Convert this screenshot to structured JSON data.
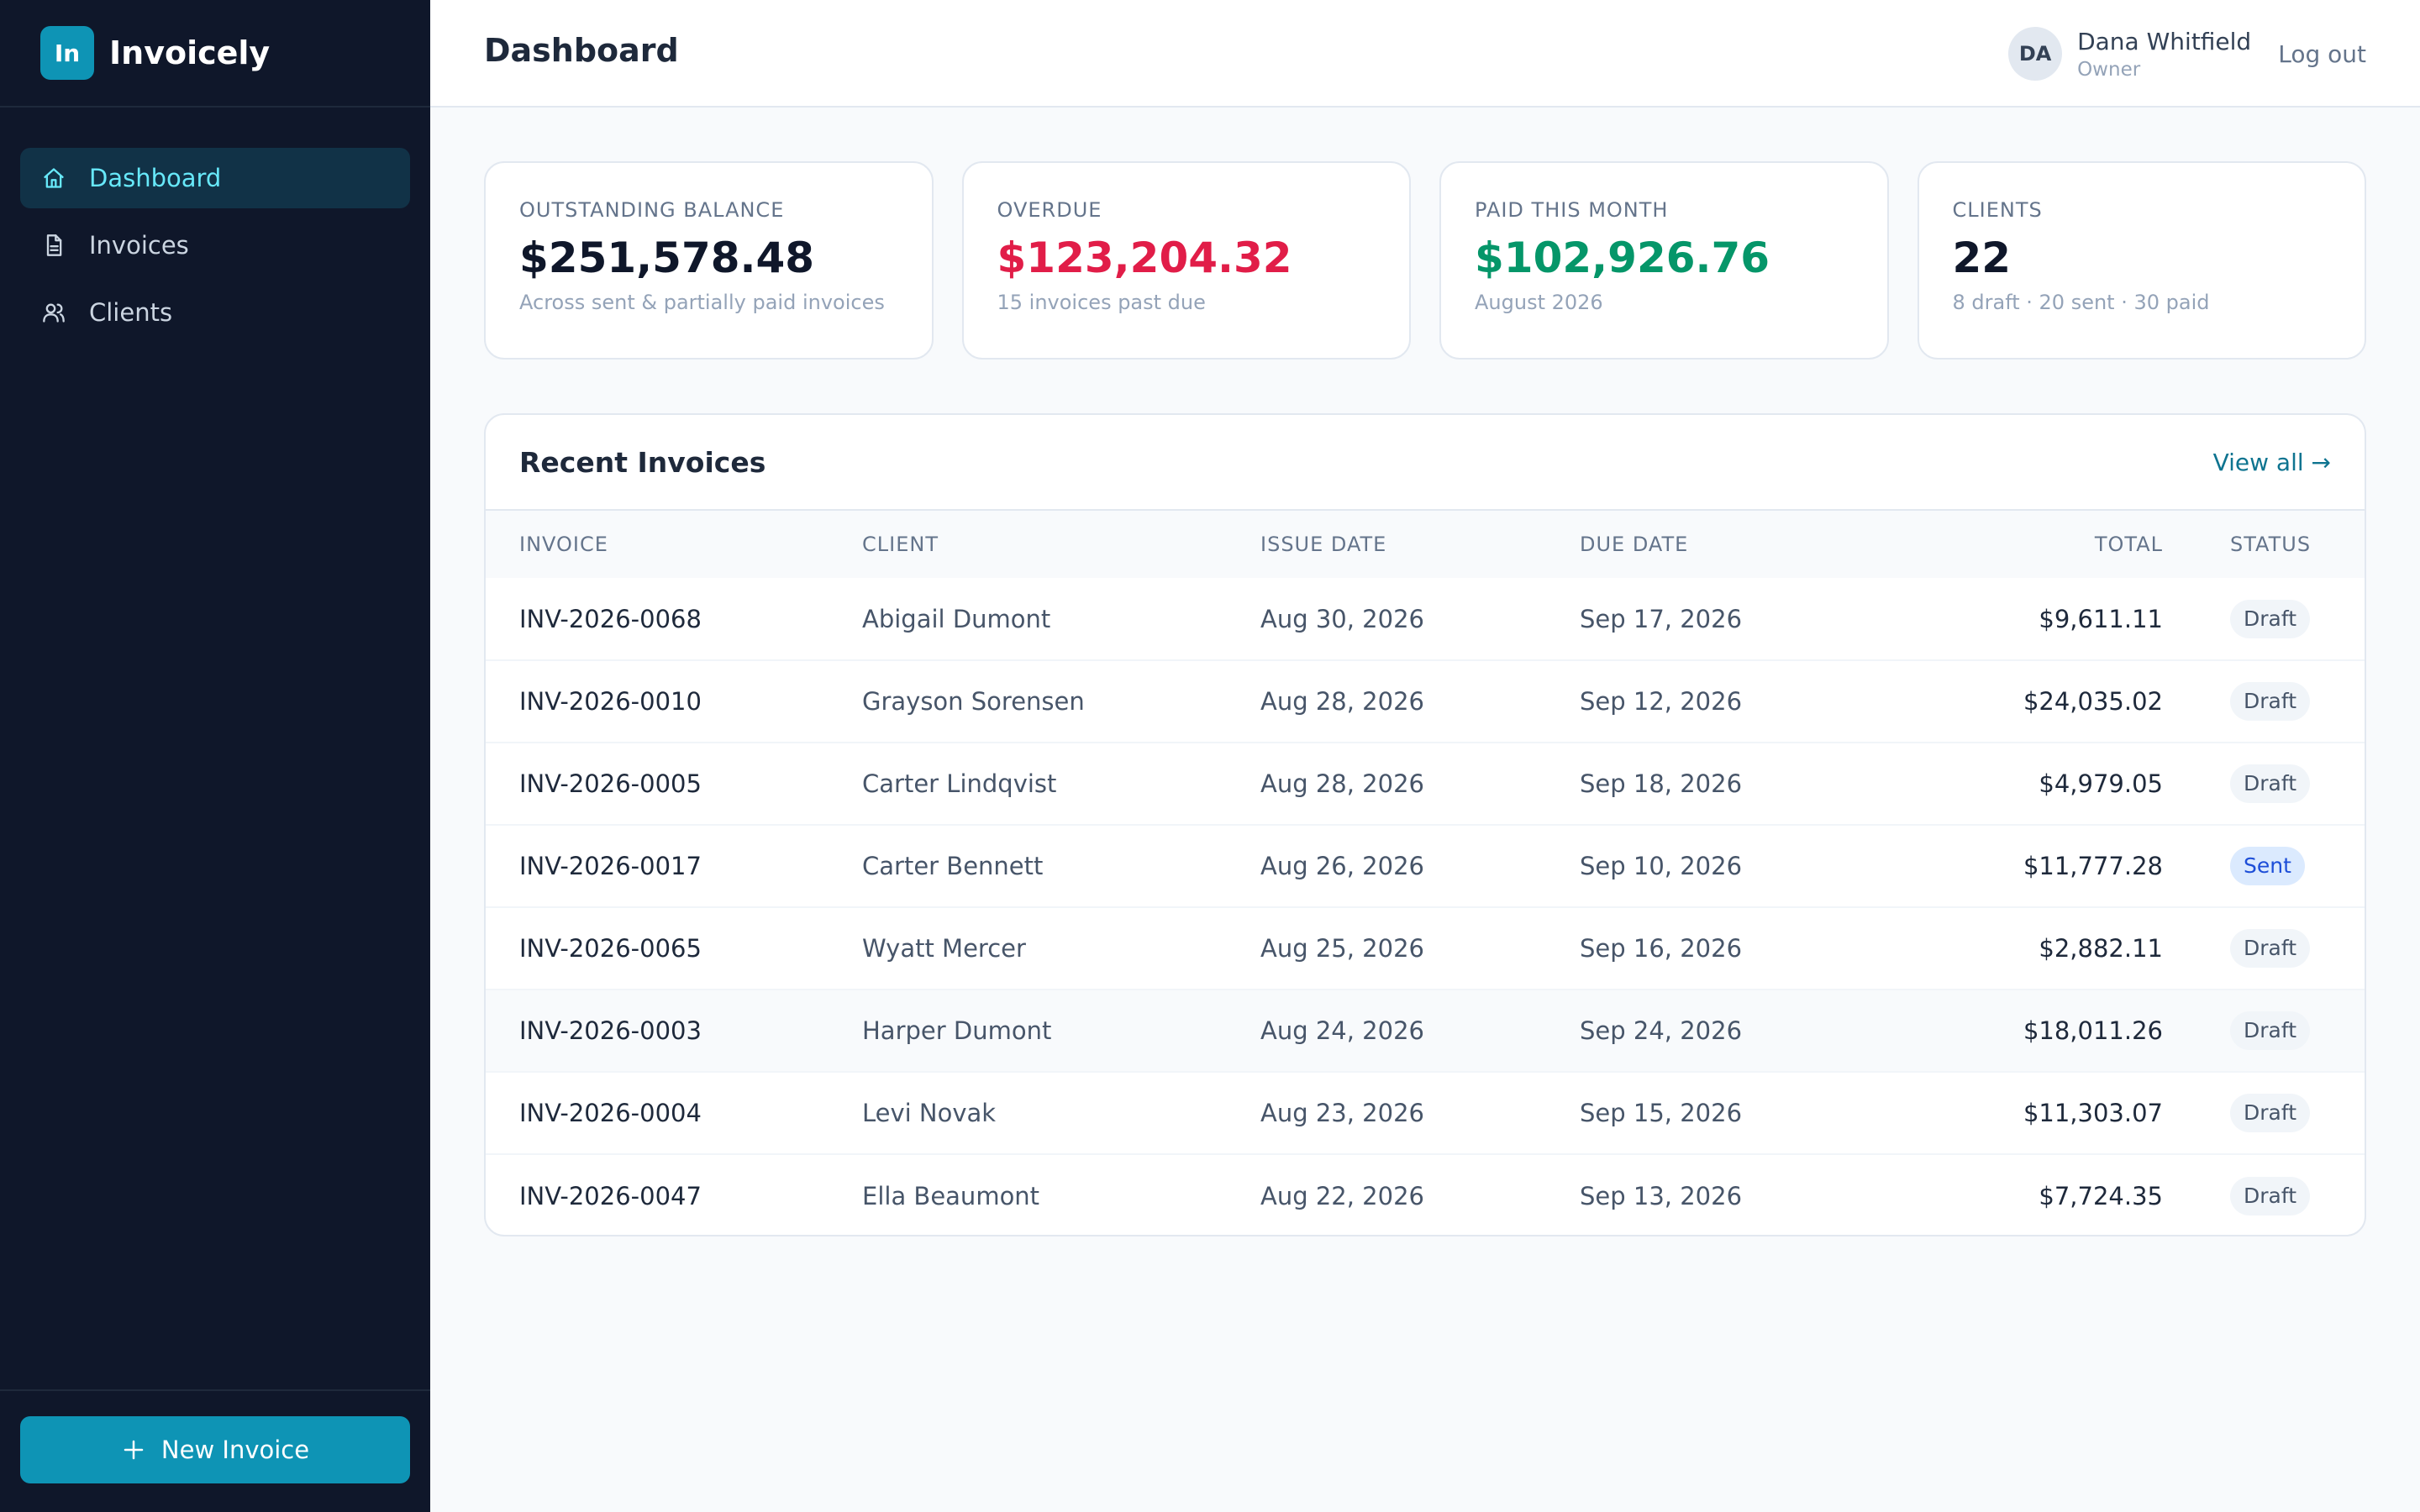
{
  "brand": {
    "logo": "In",
    "name": "Invoicely"
  },
  "nav": {
    "items": [
      {
        "label": "Dashboard",
        "icon": "home-icon",
        "active": true
      },
      {
        "label": "Invoices",
        "icon": "document-icon",
        "active": false
      },
      {
        "label": "Clients",
        "icon": "users-icon",
        "active": false
      }
    ],
    "new_invoice_label": "New Invoice"
  },
  "header": {
    "title": "Dashboard",
    "user": {
      "initials": "DA",
      "name": "Dana Whitfield",
      "role": "Owner"
    },
    "logout_label": "Log out"
  },
  "stats": [
    {
      "label": "OUTSTANDING BALANCE",
      "value": "$251,578.48",
      "sub": "Across sent & partially paid invoices",
      "color": "#0f172a"
    },
    {
      "label": "OVERDUE",
      "value": "$123,204.32",
      "sub": "15 invoices past due",
      "color": "#e11d48"
    },
    {
      "label": "PAID THIS MONTH",
      "value": "$102,926.76",
      "sub": "August 2026",
      "color": "#059669"
    },
    {
      "label": "CLIENTS",
      "value": "22",
      "sub": "8 draft · 20 sent · 30 paid",
      "color": "#0f172a"
    }
  ],
  "recent": {
    "title": "Recent Invoices",
    "view_all_label": "View all →",
    "columns": [
      "INVOICE",
      "CLIENT",
      "ISSUE DATE",
      "DUE DATE",
      "TOTAL",
      "STATUS"
    ],
    "rows": [
      {
        "invoice": "INV-2026-0068",
        "client": "Abigail Dumont",
        "issue": "Aug 30, 2026",
        "due": "Sep 17, 2026",
        "total": "$9,611.11",
        "status": "Draft"
      },
      {
        "invoice": "INV-2026-0010",
        "client": "Grayson Sorensen",
        "issue": "Aug 28, 2026",
        "due": "Sep 12, 2026",
        "total": "$24,035.02",
        "status": "Draft"
      },
      {
        "invoice": "INV-2026-0005",
        "client": "Carter Lindqvist",
        "issue": "Aug 28, 2026",
        "due": "Sep 18, 2026",
        "total": "$4,979.05",
        "status": "Draft"
      },
      {
        "invoice": "INV-2026-0017",
        "client": "Carter Bennett",
        "issue": "Aug 26, 2026",
        "due": "Sep 10, 2026",
        "total": "$11,777.28",
        "status": "Sent"
      },
      {
        "invoice": "INV-2026-0065",
        "client": "Wyatt Mercer",
        "issue": "Aug 25, 2026",
        "due": "Sep 16, 2026",
        "total": "$2,882.11",
        "status": "Draft"
      },
      {
        "invoice": "INV-2026-0003",
        "client": "Harper Dumont",
        "issue": "Aug 24, 2026",
        "due": "Sep 24, 2026",
        "total": "$18,011.26",
        "status": "Draft"
      },
      {
        "invoice": "INV-2026-0004",
        "client": "Levi Novak",
        "issue": "Aug 23, 2026",
        "due": "Sep 15, 2026",
        "total": "$11,303.07",
        "status": "Draft"
      },
      {
        "invoice": "INV-2026-0047",
        "client": "Ella Beaumont",
        "issue": "Aug 22, 2026",
        "due": "Sep 13, 2026",
        "total": "$7,724.35",
        "status": "Draft"
      }
    ]
  }
}
